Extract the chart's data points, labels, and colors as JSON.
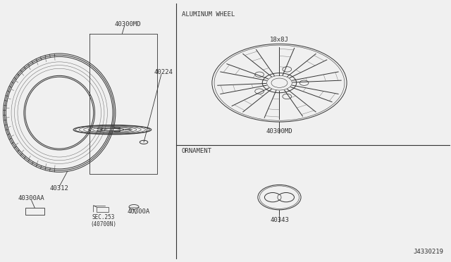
{
  "bg_color": "#f0f0f0",
  "white": "#ffffff",
  "black": "#000000",
  "dark_gray": "#333333",
  "mid_gray": "#666666",
  "light_gray": "#aaaaaa",
  "diagram_id": "J4330219",
  "label_tire": "40312",
  "label_wheel_assy": "40300MD",
  "label_valve": "40224",
  "label_nut": "40300A",
  "label_sec": "SEC.253\n(40700N)",
  "label_balance": "40300AA",
  "label_al_wheel": "40300MD",
  "label_al_size": "18x8J",
  "label_ornament": "40343",
  "label_sec_alum": "ALUMINUM WHEEL",
  "label_sec_orn": "ORNAMENT"
}
